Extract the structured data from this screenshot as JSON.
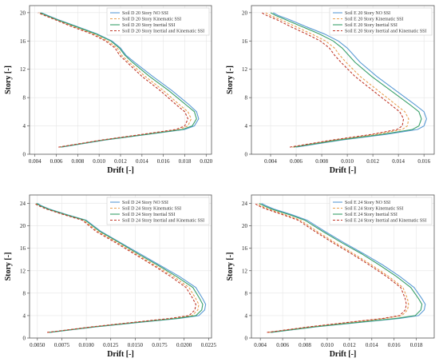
{
  "series_styles": [
    {
      "color": "#5b9bd5",
      "dash": ""
    },
    {
      "color": "#e8a050",
      "dash": "3,2"
    },
    {
      "color": "#3aa06a",
      "dash": ""
    },
    {
      "color": "#c0392b",
      "dash": "3,2"
    }
  ],
  "chart_data": [
    {
      "type": "line",
      "xlabel": "Drift [-]",
      "ylabel": "Story [-]",
      "xlim": [
        0.0035,
        0.0205
      ],
      "ylim": [
        0,
        21
      ],
      "xticks": [
        "0.004",
        "0.006",
        "0.008",
        "0.010",
        "0.012",
        "0.014",
        "0.016",
        "0.018",
        "0.020"
      ],
      "xtick_values": [
        0.004,
        0.006,
        0.008,
        0.01,
        0.012,
        0.014,
        0.016,
        0.018,
        0.02
      ],
      "yticks": [
        "0",
        "4",
        "8",
        "12",
        "16",
        "20"
      ],
      "ytick_values": [
        0,
        4,
        8,
        12,
        16,
        20
      ],
      "grid": true,
      "legend_position": "top-right",
      "series": [
        {
          "name": "Soil D 20 Story NO SSI",
          "x": [
            0.0065,
            0.0105,
            0.0145,
            0.018,
            0.0189,
            0.0193,
            0.0191,
            0.0184,
            0.0168,
            0.015,
            0.0133,
            0.0125,
            0.012,
            0.0112,
            0.0098,
            0.008,
            0.0062,
            0.0052,
            0.0046
          ],
          "y": [
            1,
            2,
            2.8,
            3.5,
            4,
            5,
            6,
            7,
            9,
            11,
            13,
            14,
            15,
            16,
            17,
            18,
            19,
            19.6,
            20
          ]
        },
        {
          "name": "Soil D 20 Story Kinematic SSI",
          "x": [
            0.0063,
            0.0103,
            0.0142,
            0.0175,
            0.0183,
            0.0186,
            0.0183,
            0.0175,
            0.016,
            0.0143,
            0.0128,
            0.0121,
            0.0117,
            0.0108,
            0.0095,
            0.0077,
            0.006,
            0.005,
            0.0044
          ],
          "y": [
            1,
            2,
            2.8,
            3.5,
            4,
            5,
            6,
            7,
            9,
            11,
            13,
            14,
            15,
            16,
            17,
            18,
            19,
            19.6,
            20
          ]
        },
        {
          "name": "Soil D 20 Story Inertial SSI",
          "x": [
            0.0064,
            0.0104,
            0.0144,
            0.0178,
            0.0187,
            0.0191,
            0.0189,
            0.0181,
            0.0165,
            0.0147,
            0.0131,
            0.0124,
            0.0119,
            0.0111,
            0.0097,
            0.0079,
            0.0061,
            0.0051,
            0.0045
          ],
          "y": [
            1,
            2,
            2.8,
            3.5,
            4,
            5,
            6,
            7,
            9,
            11,
            13,
            14,
            15,
            16,
            17,
            18,
            19,
            19.6,
            20
          ]
        },
        {
          "name": "Soil D 20 Story Inertial and Kinematic SSI",
          "x": [
            0.0062,
            0.0102,
            0.014,
            0.0172,
            0.018,
            0.0183,
            0.018,
            0.0172,
            0.0157,
            0.014,
            0.0126,
            0.0119,
            0.0115,
            0.0106,
            0.0093,
            0.0075,
            0.0059,
            0.0049,
            0.0043
          ],
          "y": [
            1,
            2,
            2.8,
            3.5,
            4,
            5,
            6,
            7,
            9,
            11,
            13,
            14,
            15,
            16,
            17,
            18,
            19,
            19.6,
            20
          ]
        }
      ]
    },
    {
      "type": "line",
      "xlabel": "Drift [-]",
      "ylabel": "Story [-]",
      "xlim": [
        0.0025,
        0.0168
      ],
      "ylim": [
        0,
        21
      ],
      "xticks": [
        "0.004",
        "0.006",
        "0.008",
        "0.010",
        "0.012",
        "0.014",
        "0.016"
      ],
      "xtick_values": [
        0.004,
        0.006,
        0.008,
        0.01,
        0.012,
        0.014,
        0.016
      ],
      "yticks": [
        "0",
        "4",
        "8",
        "12",
        "16",
        "20"
      ],
      "ytick_values": [
        0,
        4,
        8,
        12,
        16,
        20
      ],
      "grid": true,
      "legend_position": "top-right",
      "series": [
        {
          "name": "Soil E 20 Story NO SSI",
          "x": [
            0.006,
            0.0095,
            0.013,
            0.0155,
            0.016,
            0.0162,
            0.016,
            0.0153,
            0.0138,
            0.0123,
            0.011,
            0.0105,
            0.01,
            0.0093,
            0.0082,
            0.0068,
            0.0055,
            0.0046,
            0.0042
          ],
          "y": [
            1,
            2,
            2.8,
            3.5,
            4,
            5,
            6,
            7,
            9,
            11,
            13,
            14,
            15,
            16,
            17,
            18,
            19,
            19.6,
            20
          ]
        },
        {
          "name": "Soil E 20 Story Kinematic SSI",
          "x": [
            0.0057,
            0.009,
            0.0122,
            0.0143,
            0.0147,
            0.0148,
            0.0145,
            0.0138,
            0.0124,
            0.011,
            0.0099,
            0.0094,
            0.009,
            0.0083,
            0.0072,
            0.006,
            0.0048,
            0.004,
            0.0036
          ],
          "y": [
            1,
            2,
            2.8,
            3.5,
            4,
            5,
            6,
            7,
            9,
            11,
            13,
            14,
            15,
            16,
            17,
            18,
            19,
            19.6,
            20
          ]
        },
        {
          "name": "Soil E 20 Story Inertial SSI",
          "x": [
            0.0058,
            0.0093,
            0.0127,
            0.0151,
            0.0156,
            0.0158,
            0.0156,
            0.0149,
            0.0134,
            0.0119,
            0.0106,
            0.0101,
            0.0096,
            0.0089,
            0.0078,
            0.0065,
            0.0052,
            0.0044,
            0.004
          ],
          "y": [
            1,
            2,
            2.8,
            3.5,
            4,
            5,
            6,
            7,
            9,
            11,
            13,
            14,
            15,
            16,
            17,
            18,
            19,
            19.6,
            20
          ]
        },
        {
          "name": "Soil E 20 Story Inertial and Kinematic SSI",
          "x": [
            0.0055,
            0.0088,
            0.0119,
            0.0139,
            0.0143,
            0.0144,
            0.0141,
            0.0134,
            0.012,
            0.0106,
            0.0095,
            0.009,
            0.0086,
            0.0079,
            0.0068,
            0.0056,
            0.0045,
            0.0037,
            0.0033
          ],
          "y": [
            1,
            2,
            2.8,
            3.5,
            4,
            5,
            6,
            7,
            9,
            11,
            13,
            14,
            15,
            16,
            17,
            18,
            19,
            19.6,
            20
          ]
        }
      ]
    },
    {
      "type": "line",
      "xlabel": "Drift [-]",
      "ylabel": "Story [-]",
      "xlim": [
        0.0042,
        0.0228
      ],
      "ylim": [
        0,
        25.5
      ],
      "xticks": [
        "0.0050",
        "0.0075",
        "0.0100",
        "0.0125",
        "0.0150",
        "0.0175",
        "0.0200",
        "0.0225"
      ],
      "xtick_values": [
        0.005,
        0.0075,
        0.01,
        0.0125,
        0.015,
        0.0175,
        0.02,
        0.0225
      ],
      "yticks": [
        "0",
        "4",
        "8",
        "12",
        "16",
        "20",
        "24"
      ],
      "ytick_values": [
        0,
        4,
        8,
        12,
        16,
        20,
        24
      ],
      "grid": true,
      "legend_position": "top-right",
      "series": [
        {
          "name": "Soil D 24 Story NO SSI",
          "x": [
            0.0063,
            0.011,
            0.0155,
            0.0195,
            0.0215,
            0.0221,
            0.0222,
            0.0219,
            0.0212,
            0.0195,
            0.0175,
            0.0155,
            0.0135,
            0.0115,
            0.01,
            0.008,
            0.0062,
            0.0054,
            0.005
          ],
          "y": [
            1,
            2,
            2.8,
            3.5,
            4,
            5,
            6,
            7,
            9,
            11,
            13,
            15,
            17,
            19,
            21,
            22,
            23,
            23.6,
            24
          ]
        },
        {
          "name": "Soil D 24 Story Kinematic SSI",
          "x": [
            0.0061,
            0.0107,
            0.015,
            0.0189,
            0.0208,
            0.0214,
            0.0215,
            0.0212,
            0.0205,
            0.0189,
            0.017,
            0.0151,
            0.0132,
            0.0112,
            0.0097,
            0.0078,
            0.006,
            0.0052,
            0.0048
          ],
          "y": [
            1,
            2,
            2.8,
            3.5,
            4,
            5,
            6,
            7,
            9,
            11,
            13,
            15,
            17,
            19,
            21,
            22,
            23,
            23.6,
            24
          ]
        },
        {
          "name": "Soil D 24 Story Inertial SSI",
          "x": [
            0.0062,
            0.0109,
            0.0153,
            0.0193,
            0.0212,
            0.0218,
            0.0219,
            0.0216,
            0.0209,
            0.0192,
            0.0173,
            0.0153,
            0.0134,
            0.0114,
            0.0099,
            0.0079,
            0.0061,
            0.0053,
            0.0049
          ],
          "y": [
            1,
            2,
            2.8,
            3.5,
            4,
            5,
            6,
            7,
            9,
            11,
            13,
            15,
            17,
            19,
            21,
            22,
            23,
            23.6,
            24
          ]
        },
        {
          "name": "Soil D 24 Story Inertial and Kinematic SSI",
          "x": [
            0.006,
            0.0106,
            0.0148,
            0.0186,
            0.0205,
            0.0211,
            0.0212,
            0.0209,
            0.0202,
            0.0186,
            0.0168,
            0.0149,
            0.013,
            0.011,
            0.0096,
            0.0077,
            0.0059,
            0.0051,
            0.0047
          ],
          "y": [
            1,
            2,
            2.8,
            3.5,
            4,
            5,
            6,
            7,
            9,
            11,
            13,
            15,
            17,
            19,
            21,
            22,
            23,
            23.6,
            24
          ]
        }
      ]
    },
    {
      "type": "line",
      "xlabel": "Drift [-]",
      "ylabel": "Story [-]",
      "xlim": [
        0.0032,
        0.0196
      ],
      "ylim": [
        0,
        25.5
      ],
      "xticks": [
        "0.004",
        "0.006",
        "0.008",
        "0.010",
        "0.012",
        "0.014",
        "0.016",
        "0.018"
      ],
      "xtick_values": [
        0.004,
        0.006,
        0.008,
        0.01,
        0.012,
        0.014,
        0.016,
        0.018
      ],
      "yticks": [
        "0",
        "4",
        "8",
        "12",
        "16",
        "20",
        "24"
      ],
      "ytick_values": [
        0,
        4,
        8,
        12,
        16,
        20,
        24
      ],
      "grid": true,
      "legend_position": "top-right",
      "series": [
        {
          "name": "Soil E 24 Story NO SSI",
          "x": [
            0.005,
            0.009,
            0.013,
            0.0165,
            0.0182,
            0.0187,
            0.0188,
            0.0185,
            0.0178,
            0.0165,
            0.015,
            0.0133,
            0.0115,
            0.0098,
            0.0082,
            0.0068,
            0.0052,
            0.0045,
            0.0041
          ],
          "y": [
            1,
            2,
            2.8,
            3.5,
            4,
            5,
            6,
            7,
            9,
            11,
            13,
            15,
            17,
            19,
            21,
            22,
            23,
            23.6,
            24
          ]
        },
        {
          "name": "Soil E 24 Story Kinematic SSI",
          "x": [
            0.0047,
            0.0085,
            0.0121,
            0.0152,
            0.0167,
            0.0172,
            0.0173,
            0.0172,
            0.0168,
            0.0155,
            0.014,
            0.0124,
            0.0107,
            0.0091,
            0.0076,
            0.0062,
            0.0047,
            0.004,
            0.0037
          ],
          "y": [
            1,
            2,
            2.8,
            3.5,
            4,
            5,
            6,
            7,
            9,
            11,
            13,
            15,
            17,
            19,
            21,
            22,
            23,
            23.6,
            24
          ]
        },
        {
          "name": "Soil E 24 Story Inertial SSI",
          "x": [
            0.0049,
            0.0089,
            0.0128,
            0.0162,
            0.0179,
            0.0184,
            0.0185,
            0.0182,
            0.0175,
            0.0162,
            0.0147,
            0.0131,
            0.0113,
            0.0096,
            0.008,
            0.0066,
            0.005,
            0.0043,
            0.0039
          ],
          "y": [
            1,
            2,
            2.8,
            3.5,
            4,
            5,
            6,
            7,
            9,
            11,
            13,
            15,
            17,
            19,
            21,
            22,
            23,
            23.6,
            24
          ]
        },
        {
          "name": "Soil E 24 Story Inertial and Kinematic SSI",
          "x": [
            0.0046,
            0.0084,
            0.0119,
            0.015,
            0.0165,
            0.017,
            0.0171,
            0.017,
            0.0166,
            0.0153,
            0.0138,
            0.0122,
            0.0105,
            0.0089,
            0.0074,
            0.006,
            0.0045,
            0.0038,
            0.0035
          ],
          "y": [
            1,
            2,
            2.8,
            3.5,
            4,
            5,
            6,
            7,
            9,
            11,
            13,
            15,
            17,
            19,
            21,
            22,
            23,
            23.6,
            24
          ]
        }
      ]
    }
  ]
}
